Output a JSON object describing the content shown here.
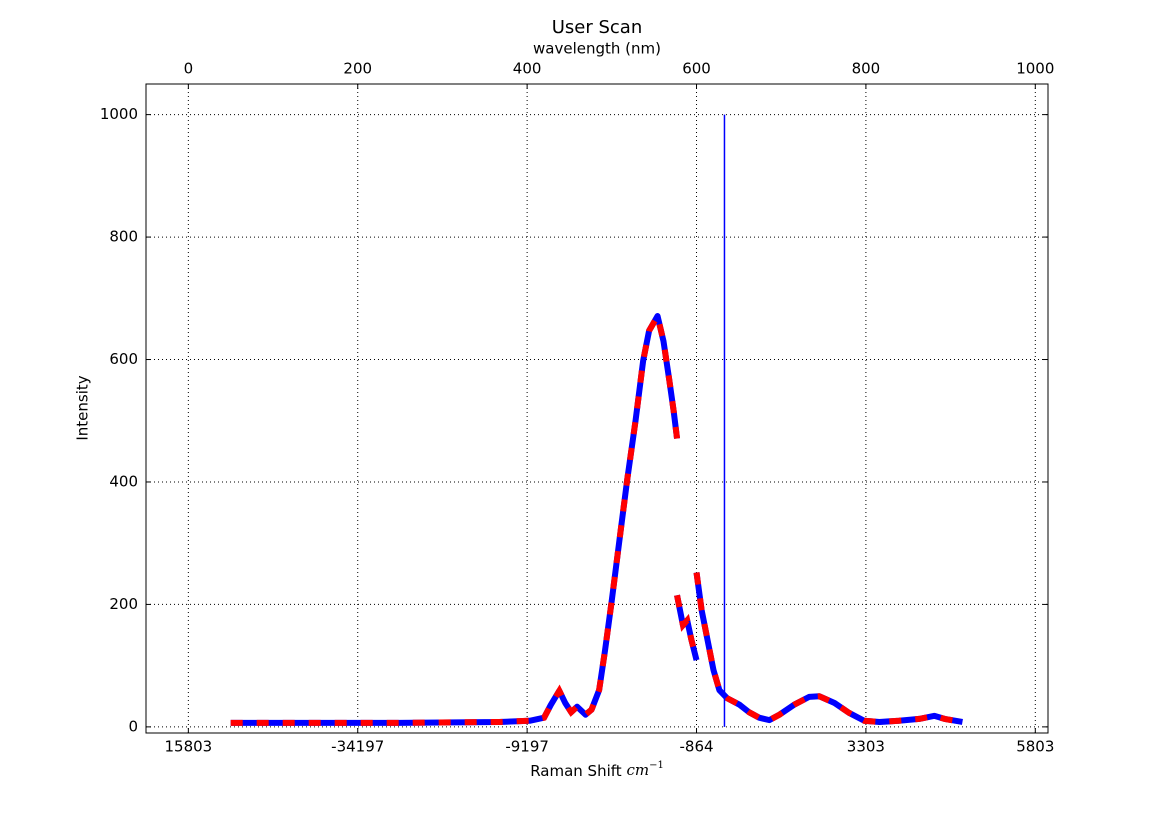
{
  "chart_data": {
    "type": "line",
    "title": "User Scan",
    "top_xlabel": "wavelength (nm)",
    "xlabel": "Raman Shift",
    "xlabel_unit": "cm",
    "xlabel_exponent": "−1",
    "ylabel": "Intensity",
    "xlim": [
      -50,
      1015
    ],
    "ylim": [
      -10,
      1050
    ],
    "xticks": [
      0,
      200,
      400,
      600,
      800,
      1000
    ],
    "raman_tick_labels": [
      "15803",
      "-34197",
      "-9197",
      "-864",
      "3303",
      "5803"
    ],
    "yticks": [
      0,
      200,
      400,
      600,
      800,
      1000
    ],
    "grid": true,
    "color": "#0000ff",
    "dash_color": "#ff0000",
    "x": [
      50,
      131,
      249,
      367,
      403,
      420,
      428,
      438,
      445,
      452,
      459,
      469,
      476,
      485,
      492,
      500,
      509,
      518,
      528,
      537,
      544,
      554,
      561,
      568,
      573,
      577,
      null,
      577,
      584,
      589,
      594,
      600,
      null,
      600,
      606,
      613,
      620,
      627,
      636,
      651,
      662,
      674,
      686,
      698,
      715,
      733,
      745,
      763,
      780,
      798,
      816,
      839,
      863,
      881,
      893,
      914
    ],
    "values": [
      6.5,
      6.5,
      6.5,
      8,
      10,
      15,
      36,
      59,
      39,
      24,
      33,
      20,
      28,
      60,
      125,
      207,
      305,
      402,
      500,
      598,
      647,
      671,
      630,
      565,
      516,
      471,
      null,
      215,
      166,
      174,
      142,
      109,
      null,
      252,
      191,
      142,
      93,
      60,
      47,
      36,
      24,
      15,
      11,
      20,
      36,
      49,
      50,
      39,
      23,
      10,
      8,
      10,
      13,
      18,
      13,
      8
    ],
    "laser_line": {
      "x": 633,
      "ymin": 0,
      "ymax": 1000,
      "color": "#0000ff"
    }
  }
}
